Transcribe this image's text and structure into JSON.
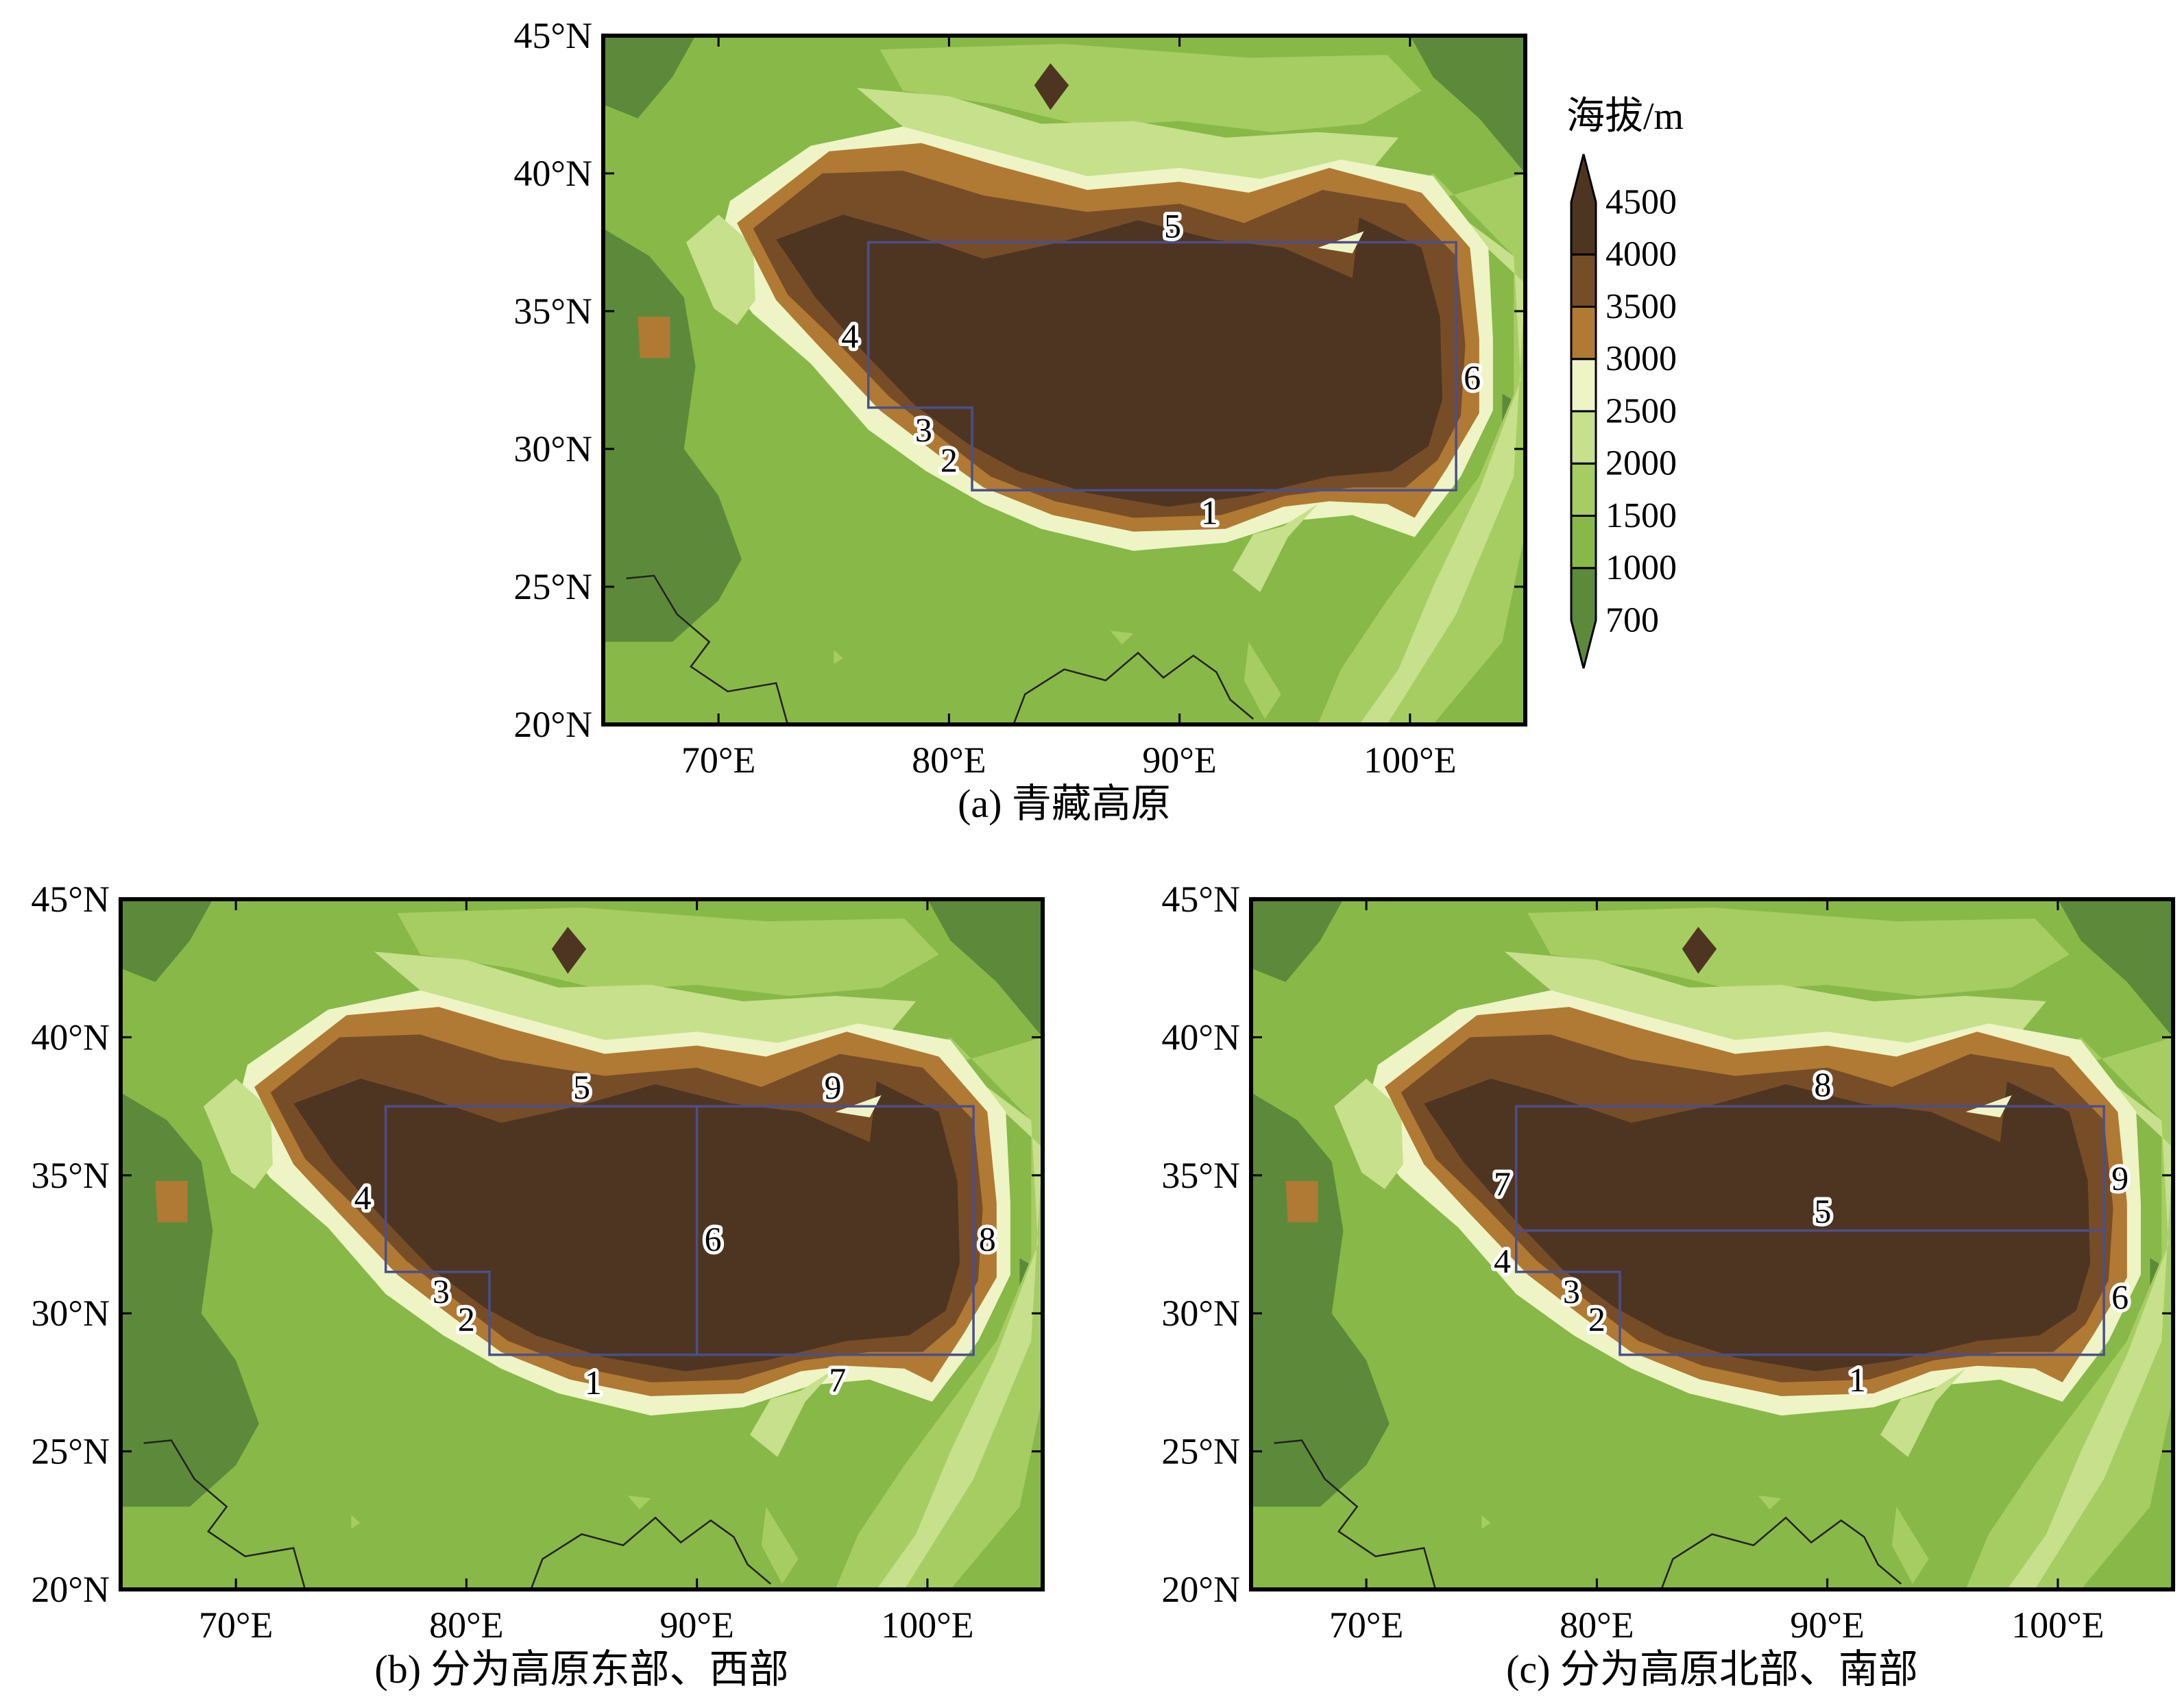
{
  "colors": {
    "levels": [
      "#5c8a3a",
      "#88b848",
      "#a6cd62",
      "#c6e08c",
      "#eef4c6",
      "#b07a34",
      "#774d28",
      "#4e3522"
    ],
    "region_box": "#4a4f8c",
    "coastline": "#222222",
    "frame": "#000000"
  },
  "colorbar": {
    "title": "海拔/m",
    "levels": [
      "700",
      "1000",
      "1500",
      "2000",
      "2500",
      "3000",
      "3500",
      "4000",
      "4500"
    ]
  },
  "axes": {
    "lon_ticks": [
      {
        "value": 70,
        "label": "70°E"
      },
      {
        "value": 80,
        "label": "80°E"
      },
      {
        "value": 90,
        "label": "90°E"
      },
      {
        "value": 100,
        "label": "100°E"
      }
    ],
    "lat_ticks": [
      {
        "value": 20,
        "label": "20°N"
      },
      {
        "value": 25,
        "label": "25°N"
      },
      {
        "value": 30,
        "label": "30°N"
      },
      {
        "value": 35,
        "label": "35°N"
      },
      {
        "value": 40,
        "label": "40°N"
      },
      {
        "value": 45,
        "label": "45°N"
      }
    ],
    "lon_range": [
      65,
      105
    ],
    "lat_range": [
      20,
      45
    ]
  },
  "panels": [
    {
      "id": "a",
      "caption": "(a) 青藏高原",
      "region_labels": [
        {
          "text": "1",
          "lon": 91.3,
          "lat": 27.7
        },
        {
          "text": "2",
          "lon": 80.0,
          "lat": 29.6
        },
        {
          "text": "3",
          "lon": 78.9,
          "lat": 30.7
        },
        {
          "text": "4",
          "lon": 75.7,
          "lat": 34.1
        },
        {
          "text": "5",
          "lon": 89.7,
          "lat": 38.1
        },
        {
          "text": "6",
          "lon": 102.7,
          "lat": 32.6
        }
      ]
    },
    {
      "id": "b",
      "caption": "(b) 分为高原东部、西部",
      "region_labels": [
        {
          "text": "1",
          "lon": 85.5,
          "lat": 27.5
        },
        {
          "text": "2",
          "lon": 80.0,
          "lat": 29.8
        },
        {
          "text": "3",
          "lon": 78.9,
          "lat": 30.8
        },
        {
          "text": "4",
          "lon": 75.5,
          "lat": 34.2
        },
        {
          "text": "5",
          "lon": 85.0,
          "lat": 38.2
        },
        {
          "text": "6",
          "lon": 90.7,
          "lat": 32.7
        },
        {
          "text": "7",
          "lon": 96.1,
          "lat": 27.6
        },
        {
          "text": "8",
          "lon": 102.6,
          "lat": 32.7
        },
        {
          "text": "9",
          "lon": 95.9,
          "lat": 38.2
        }
      ]
    },
    {
      "id": "c",
      "caption": "(c) 分为高原北部、南部",
      "region_labels": [
        {
          "text": "1",
          "lon": 91.3,
          "lat": 27.6
        },
        {
          "text": "2",
          "lon": 80.0,
          "lat": 29.8
        },
        {
          "text": "3",
          "lon": 78.9,
          "lat": 30.8
        },
        {
          "text": "4",
          "lon": 75.9,
          "lat": 31.9
        },
        {
          "text": "5",
          "lon": 89.8,
          "lat": 33.7
        },
        {
          "text": "6",
          "lon": 102.7,
          "lat": 30.6
        },
        {
          "text": "7",
          "lon": 75.9,
          "lat": 34.7
        },
        {
          "text": "8",
          "lon": 89.8,
          "lat": 38.3
        },
        {
          "text": "9",
          "lon": 102.7,
          "lat": 34.9
        }
      ]
    }
  ]
}
